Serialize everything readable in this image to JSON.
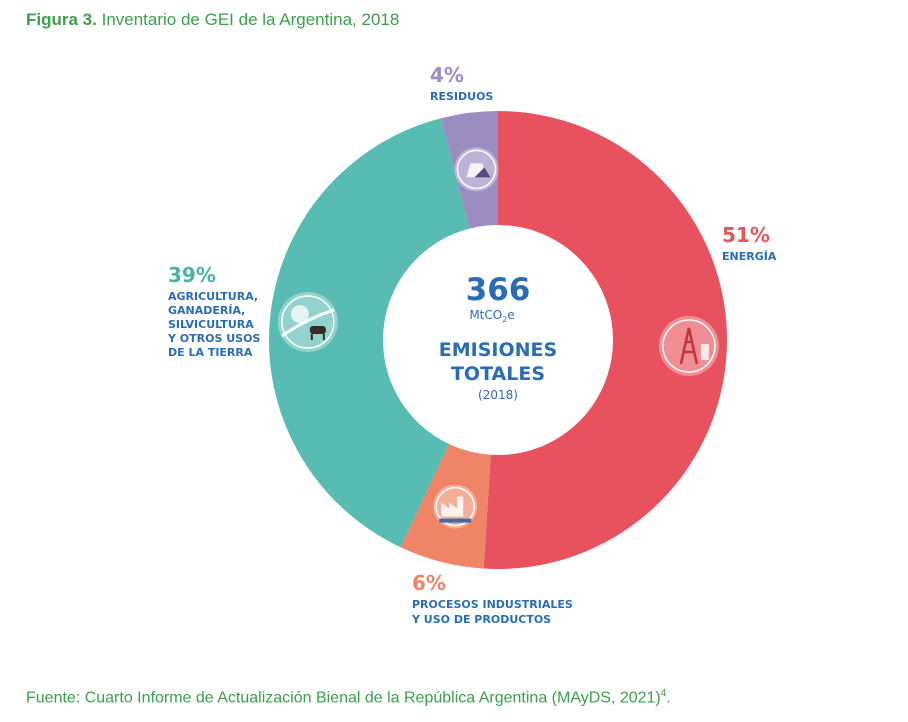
{
  "figure": {
    "label": "Figura 3.",
    "title": "Inventario de GEI de la Argentina, 2018"
  },
  "center": {
    "value": "366",
    "unit_main": "MtCO",
    "unit_sub": "2",
    "unit_end": "e",
    "line1": "EMISIONES",
    "line2": "TOTALES",
    "year": "(2018)"
  },
  "source": {
    "text": "Fuente: Cuarto Informe de Actualización Bienal de la República Argentina (MAyDS, 2021)",
    "sup": "4",
    "end": "."
  },
  "chart_data": {
    "type": "pie",
    "donut": true,
    "total": 366,
    "unit": "MtCO2e",
    "slices": [
      {
        "pct_label": "51%",
        "value": 51,
        "lines": [
          "ENERGÍA"
        ],
        "color": "#e8525f",
        "label_color": "#e8525f",
        "icon": "oil-derrick-icon"
      },
      {
        "pct_label": "6%",
        "value": 6,
        "lines": [
          "PROCESOS INDUSTRIALES",
          "Y USO DE PRODUCTOS"
        ],
        "color": "#ef8566",
        "label_color": "#ef8566",
        "icon": "factory-icon"
      },
      {
        "pct_label": "39%",
        "value": 39,
        "lines": [
          "AGRICULTURA,",
          "GANADERÍA,",
          "SILVICULTURA",
          "Y OTROS USOS",
          "DE LA TIERRA"
        ],
        "color": "#58bcb2",
        "label_color": "#4ab3a6",
        "icon": "cow-tree-icon"
      },
      {
        "pct_label": "4%",
        "value": 4,
        "lines": [
          "RESIDUOS"
        ],
        "color": "#9b8cc2",
        "label_color": "#9b8cc2",
        "icon": "landfill-icon"
      }
    ],
    "text_color": "#2a6db5"
  }
}
